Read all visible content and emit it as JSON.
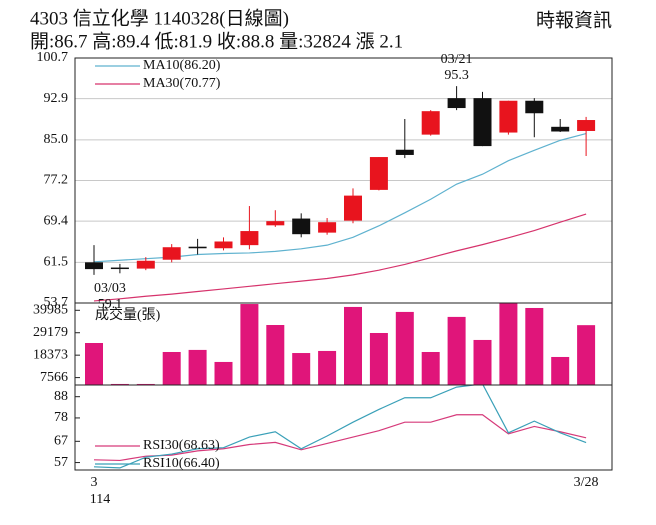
{
  "header": {
    "title": "4303  信立化學 1140328(日線圖)",
    "source": "時報資訊",
    "stats": "開:86.7 高:89.4 低:81.9 收:88.8 量:32824 漲 2.1"
  },
  "chart_data": [
    {
      "type": "candlestick",
      "categories": [
        "3",
        null,
        null,
        null,
        null,
        null,
        null,
        null,
        null,
        null,
        null,
        null,
        null,
        null,
        null,
        null,
        null,
        null,
        null,
        "3/28"
      ],
      "year_label": "114",
      "open": [
        61.5,
        60.5,
        60.3,
        62.0,
        64.5,
        64.2,
        64.8,
        68.6,
        69.9,
        67.2,
        69.5,
        75.4,
        83.1,
        86.0,
        93.0,
        93.0,
        86.4,
        92.5,
        87.5,
        86.7
      ],
      "high": [
        64.8,
        61.2,
        62.5,
        65.0,
        66.0,
        66.3,
        72.3,
        71.5,
        70.9,
        70.0,
        75.7,
        81.7,
        89.0,
        90.7,
        95.3,
        94.2,
        92.5,
        93.0,
        89.0,
        89.4
      ],
      "low": [
        59.1,
        59.4,
        60.0,
        61.5,
        63.0,
        63.8,
        64.0,
        68.3,
        66.3,
        66.8,
        69.0,
        75.3,
        81.5,
        85.8,
        90.7,
        83.8,
        86.0,
        85.5,
        86.5,
        81.9
      ],
      "close": [
        60.2,
        60.3,
        61.8,
        64.4,
        64.2,
        65.5,
        67.5,
        69.4,
        66.9,
        69.2,
        74.3,
        81.7,
        82.1,
        90.5,
        91.1,
        83.8,
        92.5,
        90.1,
        86.6,
        88.8
      ],
      "up_color": "#e8141e",
      "down_color": "#111111",
      "series": [
        {
          "name": "MA10(86.20)",
          "color": "#5fb2cf",
          "values": [
            61.6,
            61.9,
            62.2,
            62.5,
            63.0,
            63.2,
            63.3,
            63.6,
            64.1,
            64.8,
            66.3,
            68.5,
            71.0,
            73.6,
            76.5,
            78.4,
            81.0,
            83.0,
            84.9,
            86.2
          ]
        },
        {
          "name": "MA30(70.77)",
          "color": "#d6336c",
          "values": [
            54.1,
            54.5,
            55.0,
            55.4,
            55.9,
            56.4,
            56.9,
            57.4,
            57.9,
            58.4,
            59.1,
            60.0,
            61.1,
            62.4,
            63.7,
            64.9,
            66.2,
            67.6,
            69.2,
            70.77
          ]
        }
      ],
      "annotations": [
        {
          "date": "03/21",
          "value": 95.3,
          "field": "high"
        },
        {
          "date": "03/03",
          "value": 59.1,
          "field": "low"
        }
      ],
      "ylim": [
        53.7,
        100.7
      ],
      "yticks": [
        100.7,
        92.9,
        {
          "value": 85,
          "label": "85.0"
        },
        77.2,
        69.4,
        61.5,
        53.7
      ],
      "grid": true
    },
    {
      "type": "bar",
      "title": "成交量(張)",
      "color": "#e0157a",
      "values": [
        24232,
        4500,
        4500,
        19900,
        20900,
        15100,
        43000,
        32900,
        19400,
        20400,
        41600,
        29050,
        39200,
        19900,
        36800,
        25700,
        43500,
        41100,
        17500,
        32824
      ],
      "ylim": [
        4000,
        43500
      ],
      "yticks": [
        39985,
        29179,
        18373,
        7566
      ]
    },
    {
      "type": "line",
      "series": [
        {
          "name": "RSI30(68.63)",
          "color": "#d63a7a",
          "values": [
            58.3,
            58.0,
            60.0,
            60.5,
            62.5,
            63.5,
            65.5,
            66.5,
            63.0,
            66.0,
            69.0,
            72.0,
            76.0,
            76.0,
            79.5,
            79.5,
            70.5,
            74.0,
            71.5,
            68.63
          ]
        },
        {
          "name": "RSI10(66.40)",
          "color": "#3aa0b8",
          "values": [
            55.0,
            54.5,
            59.5,
            61.0,
            63.5,
            64.0,
            69.0,
            71.5,
            63.5,
            69.5,
            76.0,
            82.0,
            87.5,
            87.5,
            92.5,
            94.0,
            71.0,
            76.5,
            71.0,
            66.4
          ]
        }
      ],
      "ylim": [
        53.5,
        93.5
      ],
      "yticks": [
        88,
        78,
        67,
        57
      ]
    }
  ]
}
